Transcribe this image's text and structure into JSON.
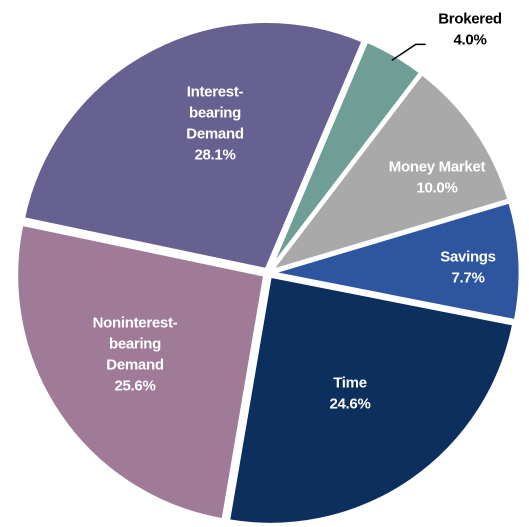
{
  "chart_data": {
    "type": "pie",
    "categories": [
      [
        "Brokered"
      ],
      [
        "Money Market"
      ],
      [
        "Savings"
      ],
      [
        "Time"
      ],
      [
        "Noninterest-",
        "bearing",
        "Demand"
      ],
      [
        "Interest-",
        "bearing",
        "Demand"
      ]
    ],
    "values": [
      4.0,
      10.0,
      7.7,
      24.6,
      25.6,
      28.1
    ],
    "value_labels": [
      "4.0%",
      "10.0%",
      "7.7%",
      "24.6%",
      "25.6%",
      "28.1%"
    ],
    "colors": [
      "#6f9e96",
      "#a9a9a9",
      "#2e56a0",
      "#0d2f5e",
      "#a07b98",
      "#666190"
    ],
    "label_colors": [
      "#000000",
      "#ffffff",
      "#ffffff",
      "#ffffff",
      "#ffffff",
      "#ffffff"
    ]
  }
}
